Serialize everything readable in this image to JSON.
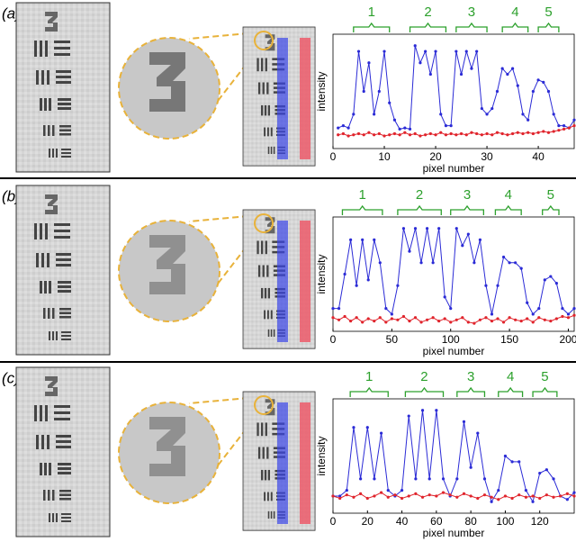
{
  "chart_data": [
    {
      "type": "line",
      "panel": "(a)",
      "xlabel": "pixel number",
      "ylabel": "intensity",
      "xlim": [
        0,
        47
      ],
      "ylim": [
        0,
        1
      ],
      "xticks": [
        0,
        10,
        20,
        30,
        40
      ],
      "x": [
        1,
        2,
        3,
        4,
        5,
        6,
        7,
        8,
        9,
        10,
        11,
        12,
        13,
        14,
        15,
        16,
        17,
        18,
        19,
        20,
        21,
        22,
        23,
        24,
        25,
        26,
        27,
        28,
        29,
        30,
        31,
        32,
        33,
        34,
        35,
        36,
        37,
        38,
        39,
        40,
        41,
        42,
        43,
        44,
        45,
        46,
        47
      ],
      "series": [
        {
          "color": "#2b2bd6",
          "values": [
            0.18,
            0.2,
            0.18,
            0.3,
            0.85,
            0.5,
            0.75,
            0.3,
            0.5,
            0.85,
            0.4,
            0.25,
            0.17,
            0.18,
            0.17,
            0.9,
            0.75,
            0.85,
            0.65,
            0.85,
            0.3,
            0.2,
            0.2,
            0.85,
            0.65,
            0.85,
            0.7,
            0.85,
            0.35,
            0.3,
            0.35,
            0.5,
            0.7,
            0.65,
            0.7,
            0.55,
            0.3,
            0.25,
            0.5,
            0.6,
            0.58,
            0.5,
            0.3,
            0.2,
            0.2,
            0.18,
            0.25
          ]
        },
        {
          "color": "#e0242c",
          "values": [
            0.12,
            0.13,
            0.11,
            0.12,
            0.13,
            0.12,
            0.14,
            0.12,
            0.13,
            0.11,
            0.12,
            0.13,
            0.12,
            0.14,
            0.12,
            0.13,
            0.11,
            0.12,
            0.13,
            0.12,
            0.14,
            0.12,
            0.13,
            0.12,
            0.13,
            0.12,
            0.14,
            0.13,
            0.12,
            0.13,
            0.12,
            0.14,
            0.13,
            0.12,
            0.13,
            0.14,
            0.13,
            0.14,
            0.13,
            0.14,
            0.15,
            0.14,
            0.15,
            0.16,
            0.17,
            0.18,
            0.2
          ]
        }
      ],
      "groups": [
        {
          "label": "1",
          "range": [
            4,
            11
          ]
        },
        {
          "label": "2",
          "range": [
            15,
            22
          ]
        },
        {
          "label": "3",
          "range": [
            24,
            30
          ]
        },
        {
          "label": "4",
          "range": [
            33,
            38
          ]
        },
        {
          "label": "5",
          "range": [
            40,
            44
          ]
        }
      ]
    },
    {
      "type": "line",
      "panel": "(b)",
      "xlabel": "pixel number",
      "ylabel": "intensity",
      "xlim": [
        0,
        205
      ],
      "ylim": [
        0,
        1
      ],
      "xticks": [
        0,
        50,
        100,
        150,
        200
      ],
      "x": [
        0,
        5,
        10,
        15,
        20,
        25,
        30,
        35,
        40,
        45,
        50,
        55,
        60,
        65,
        70,
        75,
        80,
        85,
        90,
        95,
        100,
        105,
        110,
        115,
        120,
        125,
        130,
        135,
        140,
        145,
        150,
        155,
        160,
        165,
        170,
        175,
        180,
        185,
        190,
        195,
        200,
        205
      ],
      "series": [
        {
          "color": "#2b2bd6",
          "values": [
            0.2,
            0.2,
            0.5,
            0.8,
            0.4,
            0.8,
            0.45,
            0.8,
            0.6,
            0.2,
            0.15,
            0.4,
            0.9,
            0.7,
            0.9,
            0.6,
            0.9,
            0.6,
            0.9,
            0.3,
            0.2,
            0.9,
            0.75,
            0.85,
            0.6,
            0.8,
            0.4,
            0.15,
            0.4,
            0.65,
            0.6,
            0.6,
            0.55,
            0.25,
            0.15,
            0.2,
            0.45,
            0.48,
            0.42,
            0.2,
            0.15,
            0.2
          ]
        },
        {
          "color": "#e0242c",
          "values": [
            0.12,
            0.1,
            0.13,
            0.09,
            0.12,
            0.08,
            0.11,
            0.09,
            0.12,
            0.08,
            0.11,
            0.1,
            0.13,
            0.09,
            0.12,
            0.08,
            0.1,
            0.12,
            0.09,
            0.11,
            0.08,
            0.1,
            0.12,
            0.08,
            0.07,
            0.1,
            0.12,
            0.09,
            0.11,
            0.08,
            0.12,
            0.1,
            0.09,
            0.11,
            0.08,
            0.12,
            0.1,
            0.09,
            0.11,
            0.13,
            0.12,
            0.14
          ]
        }
      ],
      "groups": [
        {
          "label": "1",
          "range": [
            8,
            42
          ]
        },
        {
          "label": "2",
          "range": [
            55,
            92
          ]
        },
        {
          "label": "3",
          "range": [
            100,
            128
          ]
        },
        {
          "label": "4",
          "range": [
            138,
            160
          ]
        },
        {
          "label": "5",
          "range": [
            178,
            192
          ]
        }
      ]
    },
    {
      "type": "line",
      "panel": "(c)",
      "xlabel": "pixel number",
      "ylabel": "intensity",
      "xlim": [
        0,
        140
      ],
      "ylim": [
        0,
        1
      ],
      "xticks": [
        0,
        20,
        40,
        60,
        80,
        100,
        120
      ],
      "x": [
        0,
        4,
        8,
        12,
        16,
        20,
        24,
        28,
        32,
        36,
        40,
        44,
        48,
        52,
        56,
        60,
        64,
        68,
        72,
        76,
        80,
        84,
        88,
        92,
        96,
        100,
        104,
        108,
        112,
        116,
        120,
        124,
        128,
        132,
        136,
        140
      ],
      "series": [
        {
          "color": "#2b2bd6",
          "values": [
            0.15,
            0.15,
            0.2,
            0.75,
            0.3,
            0.75,
            0.3,
            0.7,
            0.2,
            0.15,
            0.2,
            0.85,
            0.3,
            0.9,
            0.3,
            0.9,
            0.3,
            0.15,
            0.3,
            0.8,
            0.4,
            0.7,
            0.3,
            0.1,
            0.2,
            0.5,
            0.45,
            0.45,
            0.2,
            0.1,
            0.35,
            0.38,
            0.3,
            0.15,
            0.12,
            0.18
          ]
        },
        {
          "color": "#e0242c",
          "values": [
            0.15,
            0.13,
            0.16,
            0.14,
            0.17,
            0.13,
            0.15,
            0.18,
            0.14,
            0.16,
            0.13,
            0.15,
            0.17,
            0.14,
            0.16,
            0.15,
            0.18,
            0.16,
            0.14,
            0.17,
            0.15,
            0.13,
            0.16,
            0.14,
            0.12,
            0.15,
            0.13,
            0.16,
            0.14,
            0.15,
            0.13,
            0.16,
            0.14,
            0.15,
            0.17,
            0.15
          ]
        }
      ],
      "groups": [
        {
          "label": "1",
          "range": [
            10,
            32
          ]
        },
        {
          "label": "2",
          "range": [
            42,
            64
          ]
        },
        {
          "label": "3",
          "range": [
            72,
            88
          ]
        },
        {
          "label": "4",
          "range": [
            96,
            110
          ]
        },
        {
          "label": "5",
          "range": [
            116,
            130
          ]
        }
      ]
    }
  ]
}
